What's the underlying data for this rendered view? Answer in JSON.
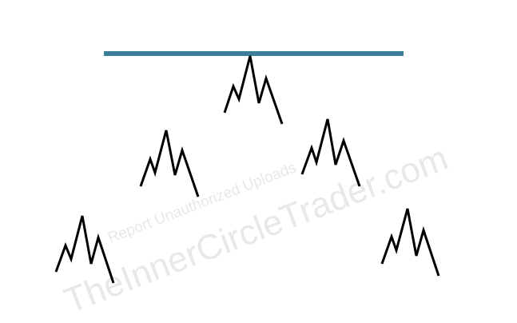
{
  "watermark": {
    "line1": "Report Unauthorized Uploads",
    "line2": "TheInnerCircleTrader.com"
  },
  "diagram": {
    "level_line_color": "#3a7f97",
    "stroke_color": "#000000",
    "peak_count": 5
  }
}
